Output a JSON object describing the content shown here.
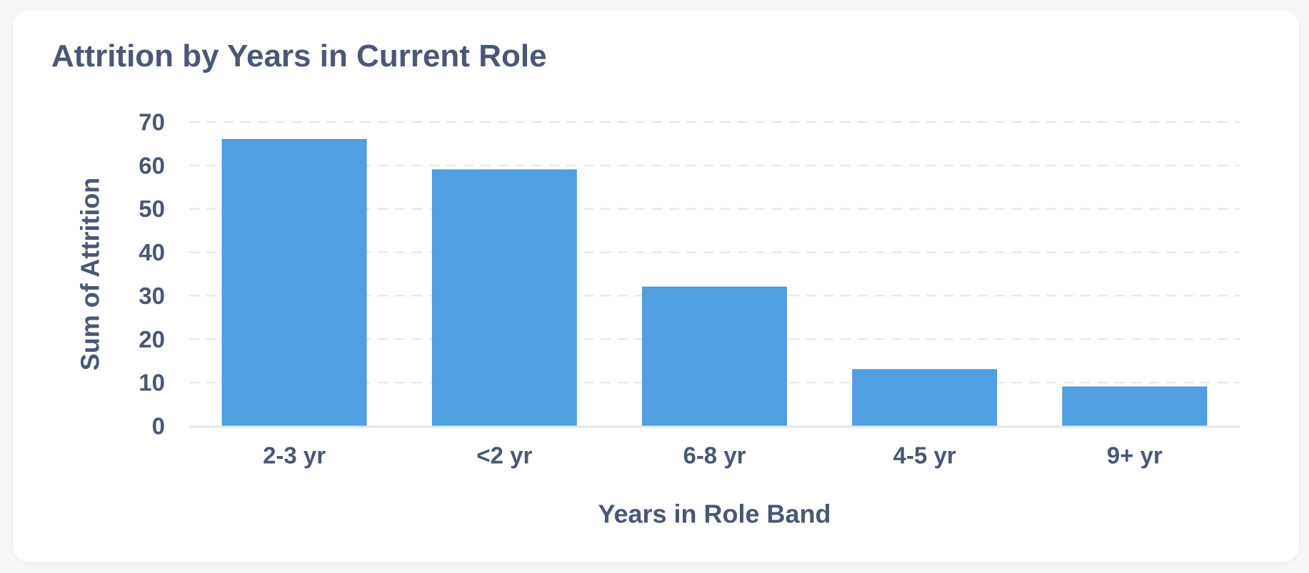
{
  "card": {
    "title": "Attrition by Years in Current Role"
  },
  "chart_data": {
    "type": "bar",
    "title": "Attrition by Years in Current Role",
    "xlabel": "Years in Role Band",
    "ylabel": "Sum of Attrition",
    "categories": [
      "2-3 yr",
      "<2 yr",
      "6-8 yr",
      "4-5 yr",
      "9+ yr"
    ],
    "series": [
      {
        "values": [
          66,
          59,
          32,
          13,
          9
        ]
      }
    ],
    "ylim": [
      0,
      70
    ],
    "yticks": [
      0,
      10,
      20,
      30,
      40,
      50,
      60,
      70
    ],
    "grid": true,
    "colors": {
      "bar": "#519fe3",
      "bar_edge": "#3f8fd6",
      "grid": "#e3e6ea",
      "text": "#4a5775"
    }
  }
}
